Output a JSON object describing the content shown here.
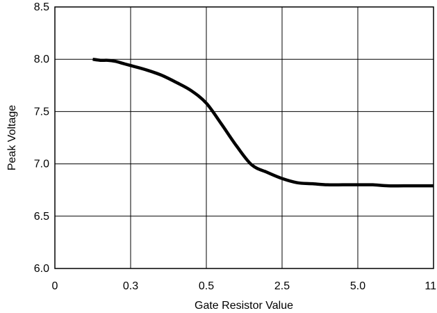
{
  "chart_data": {
    "type": "line",
    "title": "",
    "xlabel": "Gate Resistor Value",
    "ylabel": "Peak Voltage",
    "x_scale": "categorical",
    "x_ticks": [
      "0",
      "0.3",
      "0.5",
      "2.5",
      "5.0",
      "11"
    ],
    "y_ticks": [
      "6.0",
      "6.5",
      "7.0",
      "7.5",
      "8.0",
      "8.5"
    ],
    "ylim": [
      6.0,
      8.5
    ],
    "grid": true,
    "legend": "none",
    "line_color": "#000000",
    "series": [
      {
        "x_position": [
          0.5,
          0.6,
          0.7,
          0.8,
          0.9,
          1.0,
          1.2,
          1.4,
          1.6,
          1.8,
          2.0,
          2.2,
          2.4,
          2.6,
          2.8,
          3.0,
          3.2,
          3.4,
          3.6,
          3.8,
          3.9,
          4.0,
          4.1,
          4.2,
          4.4,
          4.6,
          4.8,
          5.0
        ],
        "values": [
          8.0,
          7.99,
          7.99,
          7.98,
          7.96,
          7.94,
          7.9,
          7.85,
          7.78,
          7.7,
          7.58,
          7.38,
          7.17,
          6.99,
          6.92,
          6.86,
          6.82,
          6.81,
          6.8,
          6.8,
          6.8,
          6.8,
          6.8,
          6.8,
          6.79,
          6.79,
          6.79,
          6.79
        ]
      }
    ]
  }
}
